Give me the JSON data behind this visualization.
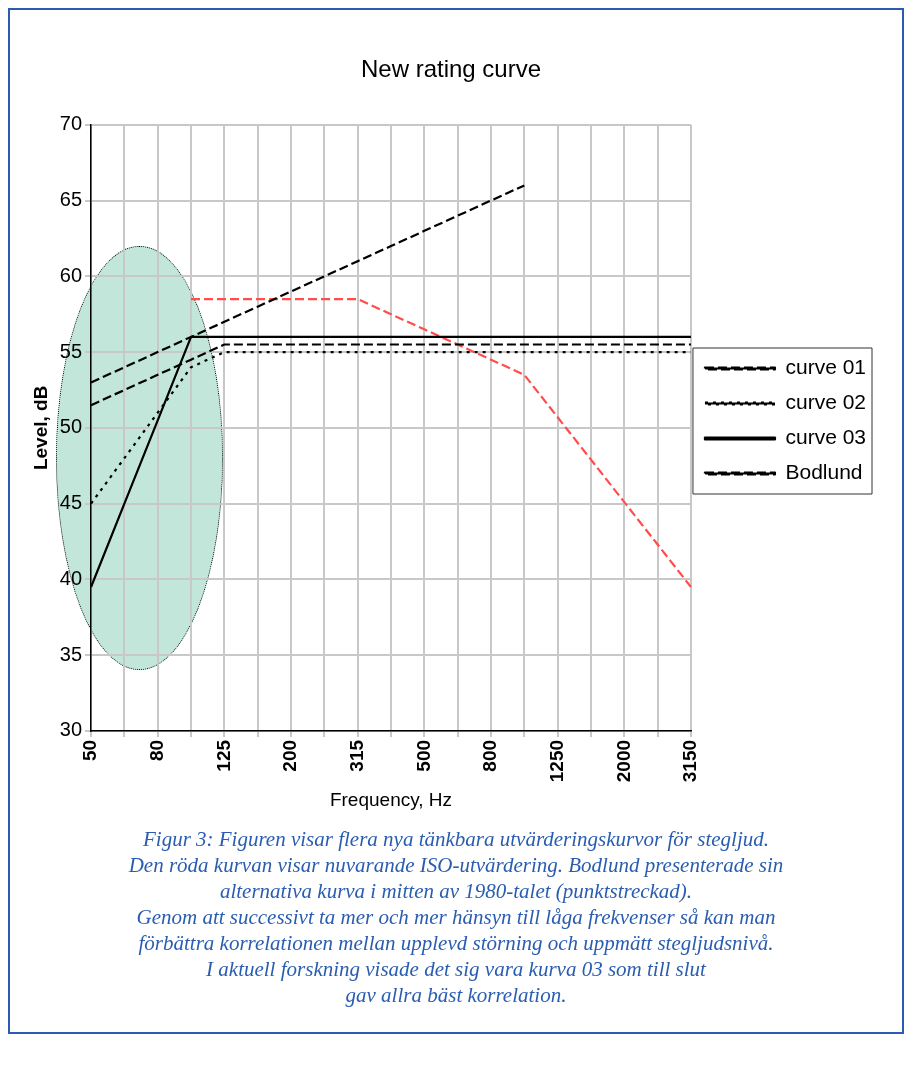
{
  "chart_data": {
    "type": "line",
    "title": "New rating curve",
    "xlabel": "Frequency, Hz",
    "ylabel": "Level, dB",
    "categories": [
      "50",
      null,
      "80",
      null,
      "125",
      null,
      "200",
      null,
      "315",
      null,
      "500",
      null,
      "800",
      null,
      "1250",
      null,
      "2000",
      null,
      "3150"
    ],
    "series": [
      {
        "name": "curve 01",
        "color": "#000000",
        "line_style": "dashed",
        "values": [
          51.5,
          52.5,
          53.5,
          54.5,
          55.5,
          55.5,
          55.5,
          55.5,
          55.5,
          55.5,
          55.5,
          55.5,
          55.5,
          55.5,
          55.5,
          55.5,
          55.5,
          55.5,
          55.5
        ]
      },
      {
        "name": "curve 02",
        "color": "#000000",
        "line_style": "dotted",
        "values": [
          45,
          48,
          51,
          54,
          55,
          55,
          55,
          55,
          55,
          55,
          55,
          55,
          55,
          55,
          55,
          55,
          55,
          55,
          55
        ]
      },
      {
        "name": "curve 03",
        "color": "#000000",
        "line_style": "solid",
        "values": [
          39.5,
          45,
          50.5,
          56,
          56,
          56,
          56,
          56,
          56,
          56,
          56,
          56,
          56,
          56,
          56,
          56,
          56,
          56,
          56
        ]
      },
      {
        "name": "Bodlund",
        "color": "#000000",
        "line_style": "dashed",
        "values": [
          53,
          54,
          55,
          56,
          57,
          58,
          59,
          60,
          61,
          62,
          63,
          64,
          65,
          66,
          null,
          null,
          null,
          null,
          null
        ]
      },
      {
        "color": "#ff4d4d",
        "line_style": "dashed",
        "values": [
          null,
          null,
          null,
          58.5,
          58.5,
          58.5,
          58.5,
          58.5,
          58.5,
          57.5,
          56.5,
          55.5,
          54.5,
          53.5,
          50.7,
          47.9,
          45.1,
          42.3,
          39.5
        ]
      }
    ],
    "ylim": [
      30,
      70
    ],
    "yticks": [
      30,
      35,
      40,
      45,
      50,
      55,
      60,
      65,
      70
    ],
    "grid": true,
    "legend": "right",
    "marker": "none",
    "annotations": [
      "Figur 3: Figuren visar flera nya tänkbara utvärderingskurvor för stegljud.",
      "Den röda kurvan visar nuvarande ISO-utvärdering. Bodlund presenterade sin",
      "alternativa kurva i mitten av 1980-talet (punktstreckad).",
      "Genom att successivt ta mer och mer hänsyn till låga frekvenser så kan man",
      "förbättra korrelationen mellan upplevd störning och uppmätt stegljudsnivå.",
      "I aktuell forskning visade det sig vara kurva 03 som till slut",
      "gav allra bäst korrelation."
    ]
  }
}
